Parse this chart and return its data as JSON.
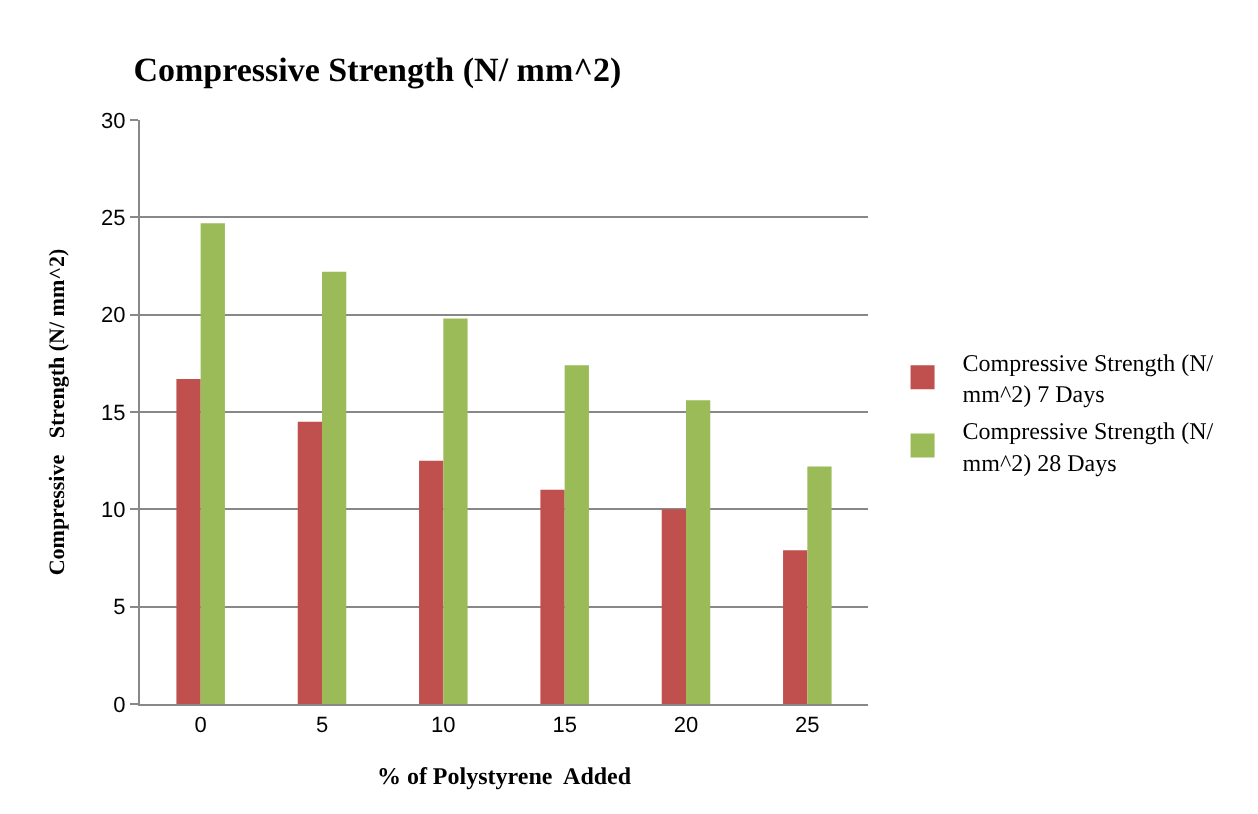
{
  "chart_data": {
    "type": "bar",
    "title": "Compressive Strength (N/ mm^2)",
    "xlabel": "% of Polystyrene  Added",
    "ylabel": "Compressive   Strength (N/ mm^2)",
    "categories": [
      "0",
      "5",
      "10",
      "15",
      "20",
      "25"
    ],
    "series": [
      {
        "name": "Compressive Strength (N/ mm^2) 7 Days",
        "color": "#c0504d",
        "values": [
          16.7,
          14.5,
          12.5,
          11.0,
          10.0,
          7.9
        ]
      },
      {
        "name": "Compressive Strength (N/ mm^2) 28 Days",
        "color": "#9bbb59",
        "values": [
          24.7,
          22.2,
          19.8,
          17.4,
          15.6,
          12.2
        ]
      }
    ],
    "ylim": [
      0,
      30
    ],
    "yticks": [
      0,
      5,
      10,
      15,
      20,
      25,
      30
    ],
    "grid": "y",
    "legend": "right"
  }
}
